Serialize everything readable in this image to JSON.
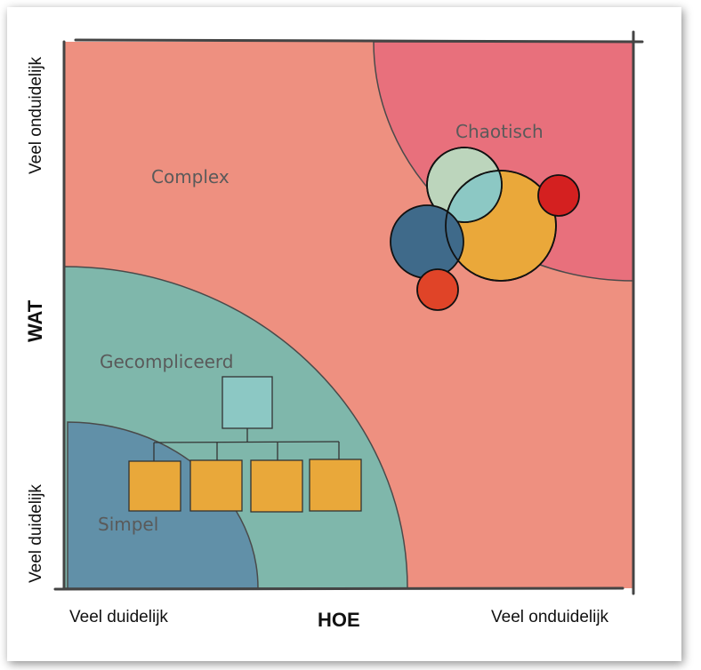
{
  "zones": {
    "complex": "Complex",
    "chaotic": "Chaotisch",
    "complicated": "Gecompliceerd",
    "simple": "Simpel"
  },
  "y_axis": {
    "title": "WAT",
    "top_label": "Veel onduidelijk",
    "bottom_label": "Veel duidelijk"
  },
  "x_axis": {
    "title": "HOE",
    "left_label": "Veel duidelijk",
    "right_label": "Veel onduidelijk"
  },
  "colors": {
    "complex": "#EE9080",
    "chaotic": "#E8707C",
    "complicated": "#7FB7AB",
    "simple": "#6190A8",
    "box_top": "#8CC8C4",
    "box": "#E9A83A",
    "circle_green": "#BCD5BC",
    "circle_yellow": "#EAA83A",
    "circle_overlap": "#8CC8C4",
    "circle_blue": "#3F6A8A",
    "circle_red": "#D42020",
    "circle_orange_red": "#E04428"
  }
}
